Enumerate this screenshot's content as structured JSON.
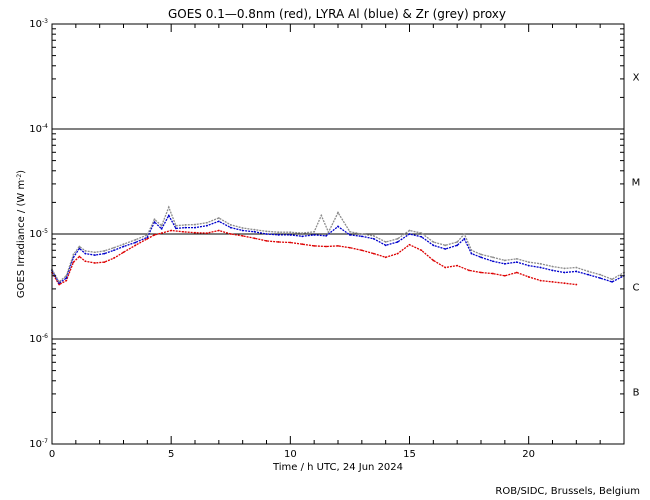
{
  "chart_data": {
    "type": "line",
    "title": "GOES 0.1—0.8nm (red), LYRA Al (blue) & Zr (grey) proxy",
    "xlabel": "Time / h UTC, 24 Jun 2024",
    "ylabel": "GOES Irradiance / (W m",
    "ylabel_sup": "-2",
    "ylabel_close": ")",
    "credit": "ROB/SIDC, Brussels, Belgium",
    "xlim": [
      0,
      24
    ],
    "x_ticks": [
      "0",
      "5",
      "10",
      "15",
      "20"
    ],
    "x_tick_values": [
      0,
      5,
      10,
      15,
      20
    ],
    "ylim": [
      1e-07,
      0.001
    ],
    "y_ticks": [
      {
        "mant": "10",
        "exp": "-3",
        "value": 0.001
      },
      {
        "mant": "10",
        "exp": "-4",
        "value": 0.0001
      },
      {
        "mant": "10",
        "exp": "-5",
        "value": 1e-05
      },
      {
        "mant": "10",
        "exp": "-6",
        "value": 1e-06
      },
      {
        "mant": "10",
        "exp": "-7",
        "value": 1e-07
      }
    ],
    "reference_lines": [
      0.0001,
      1e-05,
      1e-06
    ],
    "flare_classes": [
      {
        "label": "X",
        "value": 0.000316
      },
      {
        "label": "M",
        "value": 3.16e-05
      },
      {
        "label": "C",
        "value": 3.16e-06
      },
      {
        "label": "B",
        "value": 3.16e-07
      }
    ],
    "series": [
      {
        "name": "GOES 0.1-0.8nm",
        "color": "#dd0000",
        "points": [
          [
            0.0,
            4.3e-06
          ],
          [
            0.3,
            3.3e-06
          ],
          [
            0.6,
            3.6e-06
          ],
          [
            0.9,
            5.4e-06
          ],
          [
            1.15,
            6.1e-06
          ],
          [
            1.4,
            5.5e-06
          ],
          [
            1.8,
            5.3e-06
          ],
          [
            2.2,
            5.4e-06
          ],
          [
            2.6,
            5.9e-06
          ],
          [
            3.0,
            6.7e-06
          ],
          [
            3.5,
            7.8e-06
          ],
          [
            4.0,
            9e-06
          ],
          [
            4.3,
            9.8e-06
          ],
          [
            4.6,
            1.02e-05
          ],
          [
            5.0,
            1.08e-05
          ],
          [
            5.5,
            1.05e-05
          ],
          [
            6.0,
            1.03e-05
          ],
          [
            6.5,
            1.02e-05
          ],
          [
            7.0,
            1.08e-05
          ],
          [
            7.5,
            1e-05
          ],
          [
            8.0,
            9.6e-06
          ],
          [
            8.5,
            9.1e-06
          ],
          [
            9.0,
            8.6e-06
          ],
          [
            9.5,
            8.4e-06
          ],
          [
            10.0,
            8.3e-06
          ],
          [
            10.5,
            8e-06
          ],
          [
            11.0,
            7.7e-06
          ],
          [
            11.5,
            7.6e-06
          ],
          [
            12.0,
            7.7e-06
          ],
          [
            12.5,
            7.4e-06
          ],
          [
            13.0,
            7e-06
          ],
          [
            13.5,
            6.5e-06
          ],
          [
            14.0,
            6e-06
          ],
          [
            14.5,
            6.5e-06
          ],
          [
            15.0,
            7.9e-06
          ],
          [
            15.5,
            7e-06
          ],
          [
            16.0,
            5.6e-06
          ],
          [
            16.5,
            4.8e-06
          ],
          [
            17.0,
            5e-06
          ],
          [
            17.5,
            4.5e-06
          ],
          [
            18.0,
            4.3e-06
          ],
          [
            18.5,
            4.2e-06
          ],
          [
            19.0,
            4e-06
          ],
          [
            19.5,
            4.3e-06
          ],
          [
            20.0,
            3.9e-06
          ],
          [
            20.5,
            3.6e-06
          ],
          [
            21.0,
            3.5e-06
          ],
          [
            21.5,
            3.4e-06
          ],
          [
            22.0,
            3.3e-06
          ]
        ]
      },
      {
        "name": "LYRA Al proxy",
        "color": "#0000cc",
        "points": [
          [
            0.0,
            4.5e-06
          ],
          [
            0.3,
            3.4e-06
          ],
          [
            0.6,
            3.8e-06
          ],
          [
            0.9,
            6e-06
          ],
          [
            1.15,
            7.3e-06
          ],
          [
            1.4,
            6.5e-06
          ],
          [
            1.8,
            6.3e-06
          ],
          [
            2.2,
            6.5e-06
          ],
          [
            2.6,
            7e-06
          ],
          [
            3.0,
            7.6e-06
          ],
          [
            3.5,
            8.3e-06
          ],
          [
            4.0,
            9.3e-06
          ],
          [
            4.3,
            1.3e-05
          ],
          [
            4.6,
            1.12e-05
          ],
          [
            4.9,
            1.5e-05
          ],
          [
            5.2,
            1.13e-05
          ],
          [
            5.6,
            1.15e-05
          ],
          [
            6.0,
            1.15e-05
          ],
          [
            6.5,
            1.2e-05
          ],
          [
            7.0,
            1.32e-05
          ],
          [
            7.5,
            1.15e-05
          ],
          [
            8.0,
            1.08e-05
          ],
          [
            8.5,
            1.05e-05
          ],
          [
            9.0,
            1e-05
          ],
          [
            9.5,
            9.8e-06
          ],
          [
            10.0,
            9.8e-06
          ],
          [
            10.5,
            9.5e-06
          ],
          [
            11.0,
            9.8e-06
          ],
          [
            11.5,
            9.6e-06
          ],
          [
            12.0,
            1.18e-05
          ],
          [
            12.5,
            9.8e-06
          ],
          [
            13.0,
            9.5e-06
          ],
          [
            13.5,
            9e-06
          ],
          [
            14.0,
            7.8e-06
          ],
          [
            14.5,
            8.4e-06
          ],
          [
            15.0,
            1e-05
          ],
          [
            15.5,
            9.4e-06
          ],
          [
            16.0,
            7.8e-06
          ],
          [
            16.5,
            7.2e-06
          ],
          [
            17.0,
            7.8e-06
          ],
          [
            17.3,
            9e-06
          ],
          [
            17.6,
            6.5e-06
          ],
          [
            18.0,
            6e-06
          ],
          [
            18.5,
            5.5e-06
          ],
          [
            19.0,
            5.2e-06
          ],
          [
            19.5,
            5.4e-06
          ],
          [
            20.0,
            5e-06
          ],
          [
            20.5,
            4.8e-06
          ],
          [
            21.0,
            4.5e-06
          ],
          [
            21.5,
            4.3e-06
          ],
          [
            22.0,
            4.4e-06
          ],
          [
            22.5,
            4.1e-06
          ],
          [
            23.0,
            3.8e-06
          ],
          [
            23.5,
            3.5e-06
          ],
          [
            24.0,
            4e-06
          ]
        ]
      },
      {
        "name": "LYRA Zr proxy",
        "color": "#8c8c8c",
        "points": [
          [
            0.0,
            4.6e-06
          ],
          [
            0.3,
            3.5e-06
          ],
          [
            0.6,
            4e-06
          ],
          [
            0.9,
            6.4e-06
          ],
          [
            1.15,
            7.6e-06
          ],
          [
            1.4,
            6.9e-06
          ],
          [
            1.8,
            6.7e-06
          ],
          [
            2.2,
            6.9e-06
          ],
          [
            2.6,
            7.4e-06
          ],
          [
            3.0,
            8e-06
          ],
          [
            3.5,
            8.8e-06
          ],
          [
            4.0,
            9.8e-06
          ],
          [
            4.3,
            1.38e-05
          ],
          [
            4.6,
            1.2e-05
          ],
          [
            4.9,
            1.8e-05
          ],
          [
            5.2,
            1.2e-05
          ],
          [
            5.6,
            1.22e-05
          ],
          [
            6.0,
            1.23e-05
          ],
          [
            6.5,
            1.28e-05
          ],
          [
            7.0,
            1.42e-05
          ],
          [
            7.5,
            1.22e-05
          ],
          [
            8.0,
            1.14e-05
          ],
          [
            8.5,
            1.1e-05
          ],
          [
            9.0,
            1.06e-05
          ],
          [
            9.5,
            1.04e-05
          ],
          [
            10.0,
            1.04e-05
          ],
          [
            10.5,
            1.02e-05
          ],
          [
            11.0,
            1.05e-05
          ],
          [
            11.3,
            1.5e-05
          ],
          [
            11.6,
            1.04e-05
          ],
          [
            12.0,
            1.6e-05
          ],
          [
            12.5,
            1.05e-05
          ],
          [
            13.0,
            1e-05
          ],
          [
            13.5,
            9.6e-06
          ],
          [
            14.0,
            8.4e-06
          ],
          [
            14.5,
            9e-06
          ],
          [
            15.0,
            1.08e-05
          ],
          [
            15.5,
            1.02e-05
          ],
          [
            16.0,
            8.4e-06
          ],
          [
            16.5,
            7.8e-06
          ],
          [
            17.0,
            8.4e-06
          ],
          [
            17.3,
            1e-05
          ],
          [
            17.6,
            7e-06
          ],
          [
            18.0,
            6.4e-06
          ],
          [
            18.5,
            6e-06
          ],
          [
            19.0,
            5.6e-06
          ],
          [
            19.5,
            5.8e-06
          ],
          [
            20.0,
            5.4e-06
          ],
          [
            20.5,
            5.2e-06
          ],
          [
            21.0,
            4.9e-06
          ],
          [
            21.5,
            4.7e-06
          ],
          [
            22.0,
            4.8e-06
          ],
          [
            22.5,
            4.4e-06
          ],
          [
            23.0,
            4.1e-06
          ],
          [
            23.5,
            3.7e-06
          ],
          [
            24.0,
            4.3e-06
          ]
        ]
      }
    ]
  }
}
